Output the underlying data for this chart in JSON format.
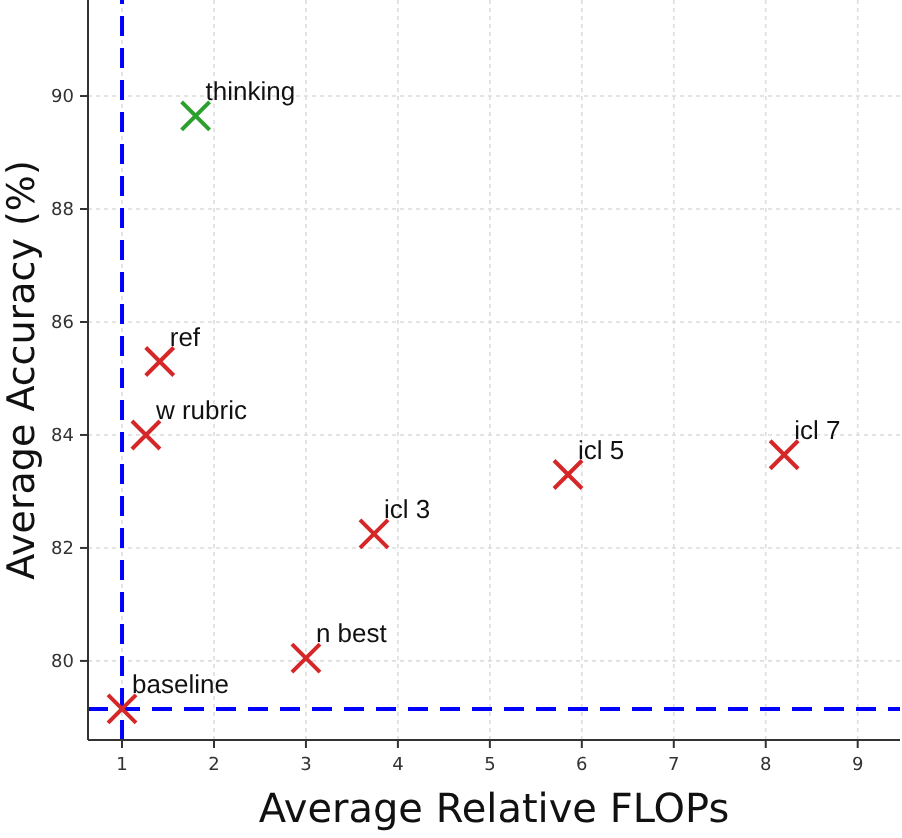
{
  "chart_data": {
    "type": "scatter",
    "xlabel": "Average Relative FLOPs",
    "ylabel": "Average Accuracy (%)",
    "xlim": [
      0.63,
      9.46
    ],
    "ylim": [
      78.6,
      91.7
    ],
    "xticks": [
      1,
      2,
      3,
      4,
      5,
      6,
      7,
      8,
      9
    ],
    "yticks": [
      80,
      82,
      84,
      86,
      88,
      90
    ],
    "grid": true,
    "marker": "cross",
    "series": [
      {
        "color": "#d62728",
        "x": [
          1.0,
          3.0,
          3.74,
          1.26,
          1.41,
          5.85,
          8.2
        ],
        "values": [
          79.15,
          80.05,
          82.25,
          84.0,
          85.3,
          83.3,
          83.65
        ]
      },
      {
        "color": "#2ca02c",
        "x": [
          1.8
        ],
        "values": [
          89.65
        ]
      }
    ],
    "ref_lines": [
      {
        "axis": "x",
        "value": 1,
        "color": "#0000ff",
        "line_style": "dashed"
      },
      {
        "axis": "y",
        "value": 79.15,
        "color": "#0000ff",
        "line_style": "dashed"
      }
    ],
    "annotations": [
      {
        "text": "baseline",
        "x": 1.0,
        "y": 79.15
      },
      {
        "text": "n best",
        "x": 3.0,
        "y": 80.05
      },
      {
        "text": "icl 3",
        "x": 3.74,
        "y": 82.25
      },
      {
        "text": "w rubric",
        "x": 1.26,
        "y": 84.0
      },
      {
        "text": "ref",
        "x": 1.41,
        "y": 85.3
      },
      {
        "text": "icl 5",
        "x": 5.85,
        "y": 83.3
      },
      {
        "text": "icl 7",
        "x": 8.2,
        "y": 83.65
      },
      {
        "text": "thinking",
        "x": 1.8,
        "y": 89.65
      }
    ]
  }
}
